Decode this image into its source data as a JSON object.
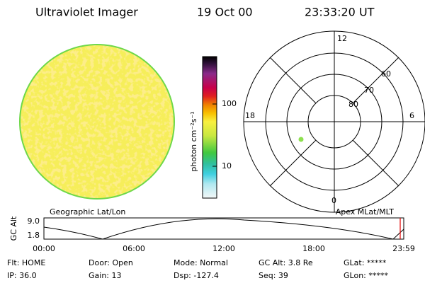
{
  "header": {
    "instrument": "Ultraviolet Imager",
    "date": "19 Oct 00",
    "time": "23:33:20 UT"
  },
  "colorbar": {
    "label": "photon cm⁻²s⁻¹",
    "ticks": [
      "100",
      "10"
    ]
  },
  "polar": {
    "mlt_labels": [
      "12",
      "6",
      "18",
      "0"
    ],
    "mlat_labels": [
      "60",
      "70",
      "80"
    ]
  },
  "panel_labels": [
    "Geographic Lat/Lon",
    "Apex MLat/MLT"
  ],
  "altitude_plot": {
    "ylabel": "GC Alt",
    "yticks": [
      "9.0",
      "1.8"
    ],
    "xticks": [
      "00:00",
      "06:00",
      "12:00",
      "18:00",
      "23:59"
    ]
  },
  "status": [
    [
      "Flt: HOME",
      "Door: Open",
      "Mode: Normal",
      "GC Alt: 3.8 Re",
      "GLat: *****"
    ],
    [
      "IP: 36.0",
      "Gain: 13",
      "Dsp: -127.4",
      "Seq: 39",
      "GLon: *****"
    ]
  ]
}
